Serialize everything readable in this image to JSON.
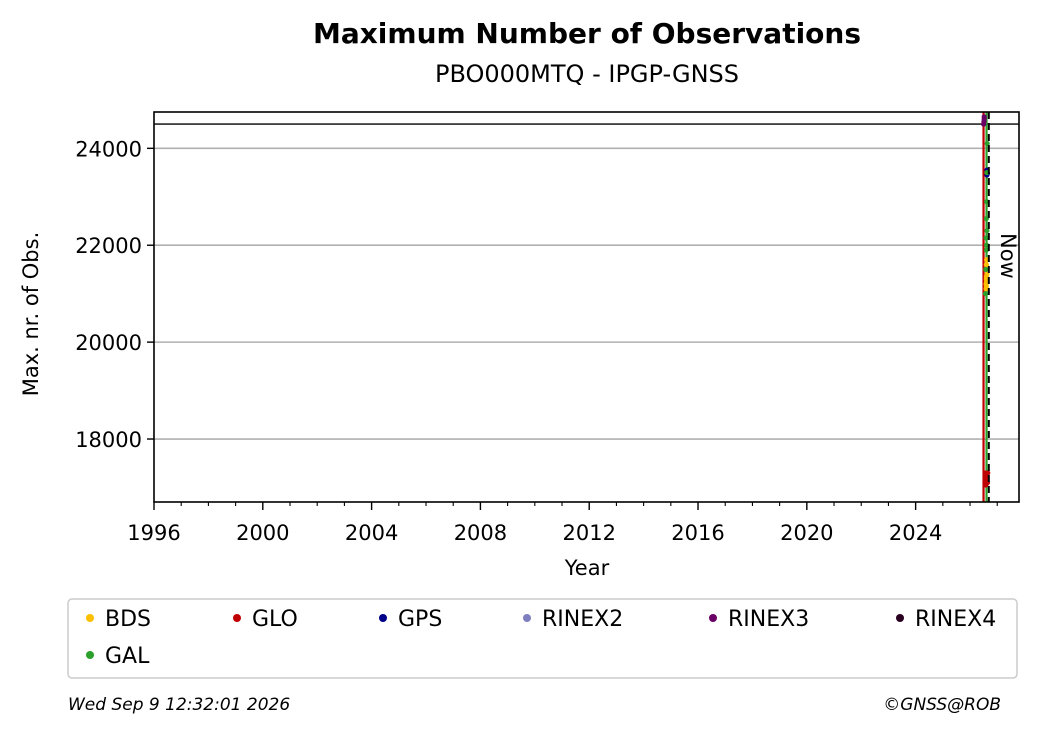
{
  "chart_data": {
    "type": "scatter",
    "title": "Maximum Number of Observations",
    "subtitle": "PBO000MTQ - IPGP-GNSS",
    "xlabel": "Year",
    "ylabel": "Max. nr. of Obs.",
    "xlim": [
      1996,
      2027.8
    ],
    "ylim": [
      16700,
      24750
    ],
    "x_ticks": [
      "1996",
      "2000",
      "2004",
      "2008",
      "2012",
      "2016",
      "2020",
      "2024"
    ],
    "y_ticks": [
      "18000",
      "20000",
      "22000",
      "24000"
    ],
    "grid": "y",
    "hline": 24500,
    "now": {
      "x": 2026.69,
      "label": "Now"
    },
    "series": [
      {
        "name": "BDS",
        "color": "#fcbf00",
        "x": [
          2026.59,
          2026.6,
          2026.61,
          2026.6,
          2026.62,
          2026.61,
          2026.6,
          2026.61,
          2026.59,
          2026.6
        ],
        "y": [
          21100,
          21150,
          21250,
          21300,
          21400,
          21500,
          21600,
          21700,
          21200,
          21350
        ]
      },
      {
        "name": "GLO",
        "color": "#c00000",
        "x": [
          2026.55,
          2026.56,
          2026.58,
          2026.57,
          2026.6,
          2026.62,
          2026.64,
          2026.63,
          2026.65
        ],
        "y": [
          17100,
          17200,
          17050,
          17300,
          17150,
          17250,
          17100,
          17200,
          17300
        ]
      },
      {
        "name": "GPS",
        "color": "#00008b",
        "x": [
          2026.62,
          2026.63,
          2026.62,
          2026.64
        ],
        "y": [
          23450,
          23500,
          23550,
          23480
        ]
      },
      {
        "name": "RINEX2",
        "color": "#7f7fbf",
        "x": [],
        "y": []
      },
      {
        "name": "RINEX3",
        "color": "#6a0066",
        "x": [
          2026.5,
          2026.51,
          2026.52,
          2026.52
        ],
        "y": [
          24500,
          24550,
          24600,
          24650
        ]
      },
      {
        "name": "RINEX4",
        "color": "#2a0021",
        "x": [],
        "y": []
      },
      {
        "name": "GAL",
        "color": "#2ca02c",
        "x": [
          2026.57,
          2026.58,
          2026.6,
          2026.61,
          2026.59,
          2026.62,
          2026.6,
          2026.61,
          2026.62,
          2026.63
        ],
        "y": [
          21000,
          21500,
          21900,
          22000,
          22150,
          22300,
          22550,
          22900,
          23500,
          24100
        ]
      }
    ],
    "legend_placement": "bottom",
    "legend_columns": 6
  },
  "footer": {
    "timestamp": "Wed Sep  9 12:32:01 2026",
    "credit": "©GNSS@ROB"
  }
}
